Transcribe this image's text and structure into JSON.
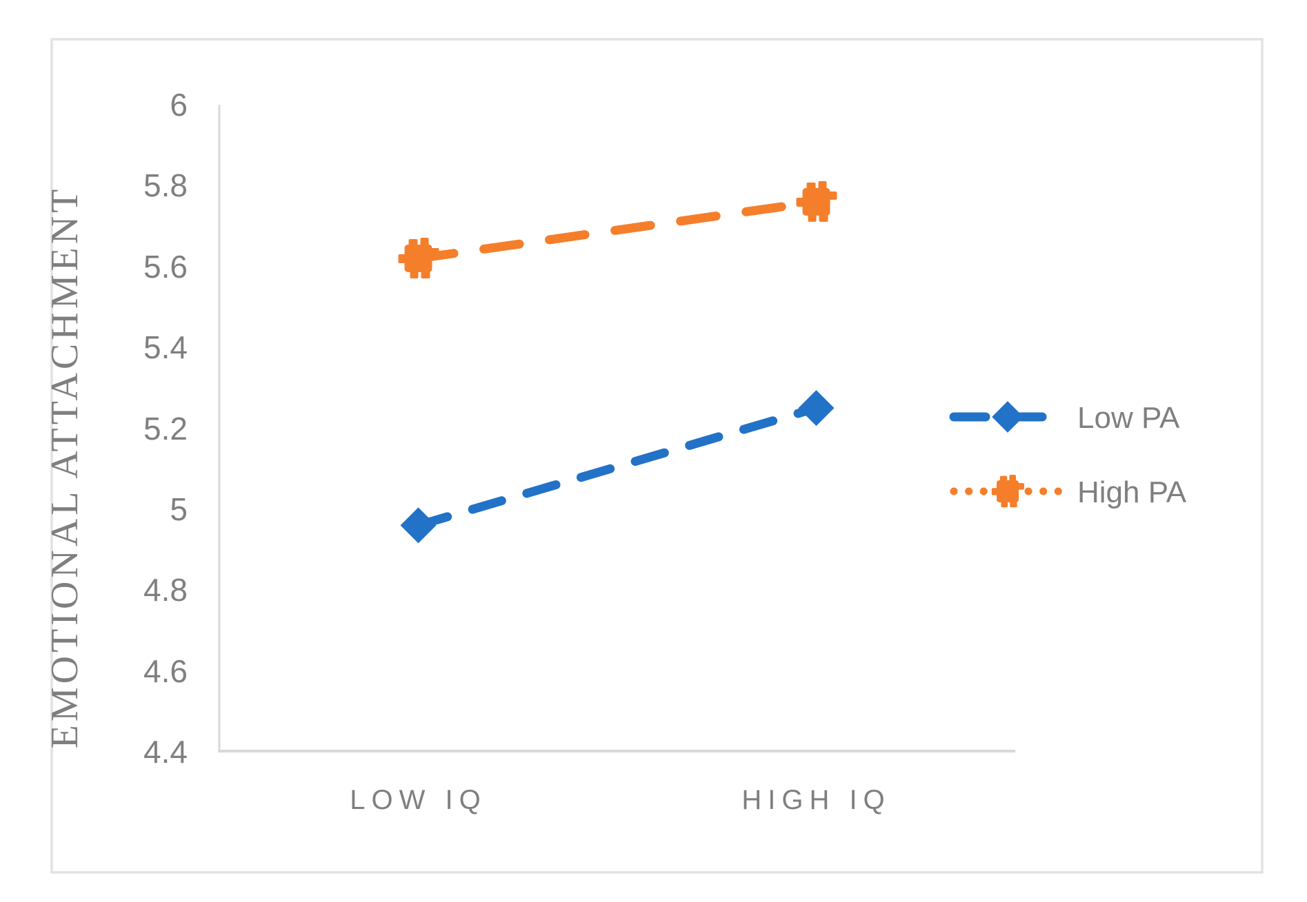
{
  "figure": {
    "background": "#FFFFFF",
    "border_color": "#E2E2E2"
  },
  "chart_data": {
    "type": "line",
    "title": "",
    "xlabel": "",
    "ylabel": "EMOTIONAL ATTACHMENT",
    "categories": [
      "LOW IQ",
      "HIGH IQ"
    ],
    "series": [
      {
        "name": "Low PA",
        "values": [
          4.96,
          5.25
        ],
        "color": "#2272C7",
        "line_style": "dashed",
        "marker": "diamond"
      },
      {
        "name": "High PA",
        "values": [
          5.62,
          5.76
        ],
        "color": "#F57E2B",
        "line_style": "dashed",
        "marker": "star",
        "legend_sample_style": "dotted"
      }
    ],
    "ylim": [
      4.4,
      6.0
    ],
    "ytick_step": 0.2,
    "yticks": [
      "6",
      "5.8",
      "5.6",
      "5.4",
      "5.2",
      "5",
      "4.8",
      "4.6",
      "4.4"
    ],
    "grid": false,
    "legend_position": "right",
    "axis_color": "#D9D9D9",
    "text_color": "#7F7F7F"
  }
}
